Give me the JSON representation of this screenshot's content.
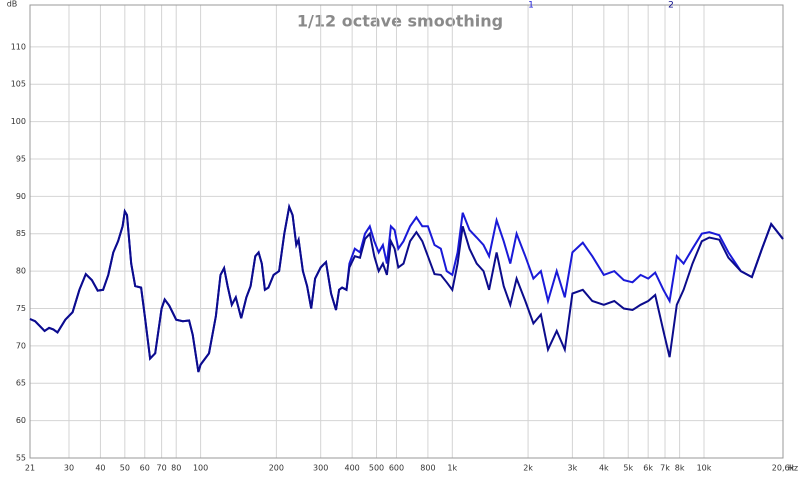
{
  "chart_data": {
    "type": "line",
    "title": "1/12 octave smoothing",
    "y_label": "dB",
    "x_label": "Hz",
    "log_x": true,
    "grid": true,
    "xlim": [
      21,
      20600
    ],
    "ylim": [
      55,
      115.6
    ],
    "yticks": [
      55,
      60,
      65,
      70,
      75,
      80,
      85,
      90,
      95,
      100,
      105,
      110
    ],
    "xticks": [
      21,
      30,
      40,
      50,
      60,
      70,
      80,
      100,
      200,
      300,
      400,
      500,
      600,
      800,
      {
        "value": 1000,
        "label": "1k"
      },
      {
        "value": 2000,
        "label": "2k"
      },
      {
        "value": 3000,
        "label": "3k"
      },
      {
        "value": 4000,
        "label": "4k"
      },
      {
        "value": 5000,
        "label": "5k"
      },
      {
        "value": 6000,
        "label": "6k"
      },
      {
        "value": 7000,
        "label": "7k"
      },
      {
        "value": 8000,
        "label": "8k"
      },
      {
        "value": 10000,
        "label": "10k"
      },
      {
        "value": 20600,
        "label": "20,6k"
      }
    ],
    "x": [
      21,
      22,
      24,
      25,
      26,
      27,
      29,
      31,
      33,
      35,
      37,
      39,
      41,
      43,
      45,
      47,
      49,
      50,
      51,
      53,
      55,
      58,
      60,
      63,
      66,
      70,
      72,
      75,
      80,
      85,
      90,
      93,
      98,
      100,
      108,
      115,
      120,
      124,
      128,
      133,
      138,
      145,
      152,
      158,
      165,
      170,
      175,
      180,
      186,
      195,
      205,
      215,
      225,
      232,
      240,
      245,
      255,
      265,
      275,
      285,
      300,
      315,
      330,
      345,
      355,
      365,
      380,
      390,
      410,
      430,
      450,
      470,
      490,
      510,
      530,
      550,
      570,
      590,
      610,
      640,
      680,
      720,
      760,
      800,
      850,
      900,
      950,
      1000,
      1050,
      1100,
      1170,
      1250,
      1330,
      1400,
      1500,
      1600,
      1700,
      1800,
      1950,
      2100,
      2250,
      2400,
      2600,
      2800,
      3000,
      3300,
      3600,
      4000,
      4400,
      4800,
      5200,
      5600,
      6000,
      6400,
      6900,
      7300,
      7800,
      8300,
      9000,
      9800,
      10500,
      11500,
      12500,
      14000,
      15500,
      17000,
      18500,
      20600
    ],
    "series": [
      {
        "name": "1",
        "color": "#1a1ad8",
        "values": [
          73.6,
          73.3,
          72.0,
          72.4,
          72.2,
          71.8,
          73.5,
          74.5,
          77.5,
          79.6,
          78.8,
          77.4,
          77.5,
          79.5,
          82.5,
          84,
          86,
          88,
          87.5,
          81,
          78,
          77.8,
          74,
          68.3,
          69,
          75,
          76.2,
          75.4,
          73.5,
          73.3,
          73.4,
          71.5,
          66.5,
          67.5,
          69,
          74,
          79.5,
          80.4,
          78,
          75.5,
          76.5,
          73.7,
          76.5,
          78,
          82,
          82.5,
          81,
          77.5,
          77.8,
          79.5,
          80,
          85,
          88.6,
          87.5,
          83.5,
          84.2,
          80,
          78,
          75,
          79,
          80.5,
          81.2,
          77,
          74.8,
          77.5,
          77.8,
          77.5,
          81,
          83,
          82.5,
          85,
          86,
          84,
          82.5,
          83.5,
          81,
          86,
          85.5,
          83,
          84,
          86,
          87.2,
          86,
          86,
          83.5,
          83,
          80,
          79.5,
          82.5,
          87.8,
          85.5,
          84.5,
          83.5,
          82,
          86.8,
          84,
          81,
          85,
          82,
          79,
          80,
          76,
          80,
          76.5,
          82.5,
          83.8,
          82,
          79.5,
          80,
          78.8,
          78.5,
          79.5,
          79,
          79.8,
          77.5,
          76,
          82,
          81,
          83,
          85,
          85.2,
          84.8,
          82.5,
          80,
          79.2,
          83,
          86.3,
          84.3
        ]
      },
      {
        "name": "2",
        "color": "#0c0c8c",
        "values": [
          73.6,
          73.3,
          72.0,
          72.4,
          72.2,
          71.8,
          73.5,
          74.5,
          77.5,
          79.6,
          78.8,
          77.4,
          77.5,
          79.5,
          82.5,
          84,
          86,
          88,
          87.5,
          81,
          78,
          77.8,
          74,
          68.3,
          69,
          75,
          76.2,
          75.4,
          73.5,
          73.3,
          73.4,
          71.5,
          66.5,
          67.5,
          69,
          74,
          79.5,
          80.4,
          78,
          75.5,
          76.5,
          73.7,
          76.5,
          78,
          82,
          82.5,
          81,
          77.5,
          77.8,
          79.5,
          80,
          85,
          88.6,
          87.5,
          83.5,
          84.2,
          80,
          78,
          75,
          79,
          80.5,
          81.2,
          77,
          74.8,
          77.5,
          77.8,
          77.5,
          80.5,
          82,
          81.8,
          84.3,
          85,
          82,
          80,
          81,
          79.5,
          84,
          83,
          80.5,
          81,
          84,
          85.2,
          84,
          82,
          79.6,
          79.5,
          78.5,
          77.5,
          81,
          86,
          83,
          81,
          80,
          77.5,
          82.5,
          78,
          75.5,
          79,
          76,
          73,
          74.2,
          69.5,
          72,
          69.5,
          77,
          77.5,
          76,
          75.5,
          76,
          75,
          74.8,
          75.5,
          76,
          76.8,
          72,
          68.5,
          75.5,
          77.5,
          81,
          84,
          84.5,
          84.2,
          81.8,
          80,
          79.2,
          83,
          86.3,
          84.3
        ]
      }
    ]
  }
}
